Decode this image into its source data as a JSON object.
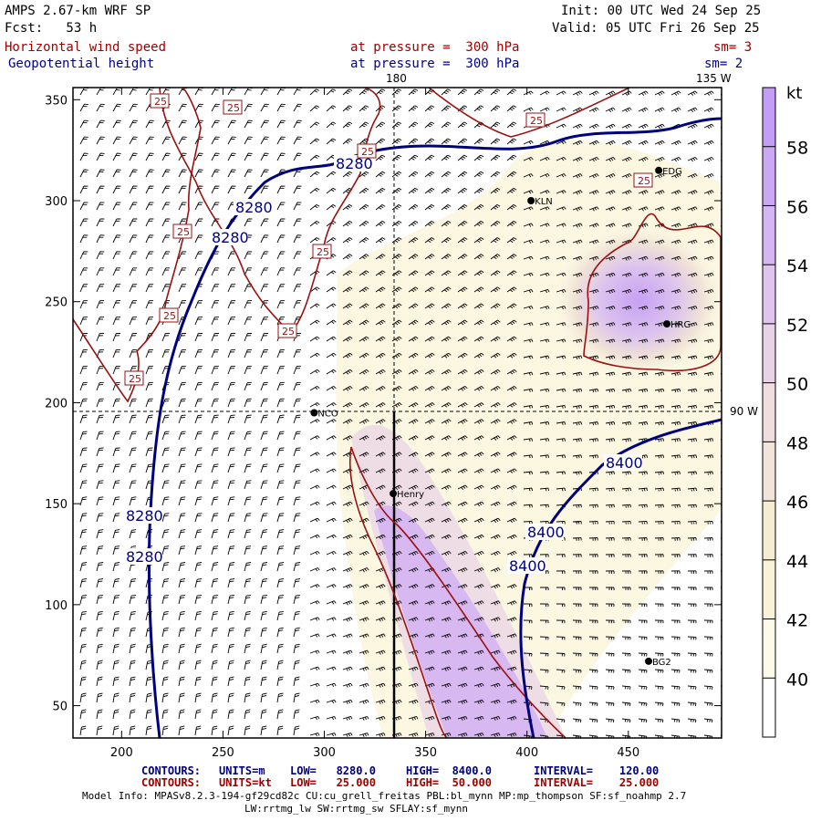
{
  "header": {
    "model": "AMPS 2.67-km WRF SP",
    "fcst": "Fcst:   53 h",
    "init": "Init: 00 UTC Wed 24 Sep 25",
    "valid": "Valid: 05 UTC Fri 26 Sep 25",
    "field1": "Horizontal wind speed",
    "field2": "Geopotential height",
    "level1": "at pressure =  300 hPa",
    "level2": "at pressure =  300 hPa",
    "sm1": "sm= 3",
    "sm2": "sm= 2"
  },
  "map_labels": {
    "lon_top": "180",
    "lon_top_right": "135 W",
    "lon_right": "90 W",
    "legend_unit": "kt"
  },
  "stations": [
    {
      "name": "KLN",
      "x": 402,
      "y": 300
    },
    {
      "name": "EDG",
      "x": 465,
      "y": 315
    },
    {
      "name": "HRG",
      "x": 469,
      "y": 239
    },
    {
      "name": "NCO",
      "x": 295,
      "y": 195
    },
    {
      "name": "Henry",
      "x": 334,
      "y": 155
    },
    {
      "name": "BG2",
      "x": 460,
      "y": 72
    }
  ],
  "height_labels": [
    "8280",
    "8280",
    "8280",
    "8280",
    "8280",
    "8400",
    "8400",
    "8400"
  ],
  "speed_labels": [
    "25",
    "25",
    "25",
    "25",
    "25",
    "25",
    "25",
    "25",
    "25",
    "25"
  ],
  "footer": {
    "c1_name": "CONTOURS:",
    "c1_units": "UNITS=m",
    "c1_low": "LOW=   8280.0",
    "c1_high": "HIGH=  8400.0",
    "c1_int": "INTERVAL=    120.00",
    "c2_name": "CONTOURS:",
    "c2_units": "UNITS=kt",
    "c2_low": "LOW=   25.000",
    "c2_high": "HIGH=  50.000",
    "c2_int": "INTERVAL=    25.000",
    "model_info": "Model Info: MPASv8.2.3-194-gf29cd82c CU:cu_grell_freitas PBL:bl_mynn MP:mp_thompson SF:sf_noahmp 2.7",
    "model_info2": "LW:rrtmg_lw SW:rrtmg_sw SFLAY:sf_mynn"
  },
  "chart_data": {
    "type": "heatmap",
    "x_ticks": [
      200,
      250,
      300,
      350,
      400,
      450
    ],
    "y_ticks": [
      50,
      100,
      150,
      200,
      250,
      300,
      350
    ],
    "xlim": [
      176,
      496
    ],
    "ylim": [
      34,
      356
    ],
    "colorbar": {
      "unit": "kt",
      "ticks": [
        40,
        42,
        44,
        46,
        48,
        50,
        52,
        54,
        56,
        58
      ],
      "colors": [
        "#ffffff",
        "#fbfbe8",
        "#f8f3d6",
        "#f5ecd1",
        "#f2e4d8",
        "#efdde0",
        "#e8d2e6",
        "#e0c4ee",
        "#d6b6f2",
        "#cca8f4",
        "#c49df6"
      ]
    },
    "contours": [
      {
        "field": "height",
        "units": "m",
        "low": 8280.0,
        "high": 8400.0,
        "interval": 120.0
      },
      {
        "field": "wind speed",
        "units": "kt",
        "low": 25.0,
        "high": 50.0,
        "interval": 25.0
      }
    ]
  }
}
